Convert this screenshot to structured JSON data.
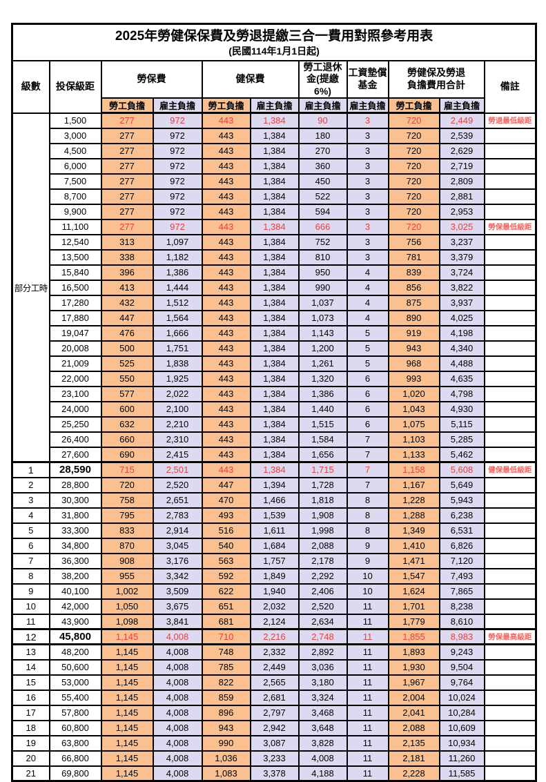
{
  "title": "2025年勞健保保費及勞退提繳三合一費用對照參考用表",
  "subtitle": "(民國114年1月1日起)",
  "colors": {
    "employee_share_bg": "#FAC090",
    "employer_share_bg": "#DCD9F1",
    "highlight_value_text": "#E8403A",
    "remark_text": "#F4645F",
    "grid_border": "#000000"
  },
  "header": {
    "level": "級數",
    "bracket": "投保級距",
    "labor_insurance": "勞保費",
    "health_insurance": "健保費",
    "pension_line1": "勞工退休",
    "pension_line2": "金(提繳6%)",
    "wage_fund_line1": "工資墊償",
    "wage_fund_line2": "基金",
    "total_line1": "勞健保及勞退",
    "total_line2": "負擔費用合計",
    "remark": "備註",
    "employee_share": "勞工負擔",
    "employer_share": "雇主負擔"
  },
  "table": {
    "part_time_label": "部分工時",
    "part_time_rowspan": 23
  },
  "rows": [
    {
      "level": "",
      "bracket": "1,500",
      "values": [
        "277",
        "972",
        "443",
        "1,384",
        "90",
        "3",
        "720",
        "2,449"
      ],
      "remark": "勞退最低級距",
      "red": true
    },
    {
      "level": "",
      "bracket": "3,000",
      "values": [
        "277",
        "972",
        "443",
        "1,384",
        "180",
        "3",
        "720",
        "2,539"
      ],
      "remark": ""
    },
    {
      "level": "",
      "bracket": "4,500",
      "values": [
        "277",
        "972",
        "443",
        "1,384",
        "270",
        "3",
        "720",
        "2,629"
      ],
      "remark": ""
    },
    {
      "level": "",
      "bracket": "6,000",
      "values": [
        "277",
        "972",
        "443",
        "1,384",
        "360",
        "3",
        "720",
        "2,719"
      ],
      "remark": ""
    },
    {
      "level": "",
      "bracket": "7,500",
      "values": [
        "277",
        "972",
        "443",
        "1,384",
        "450",
        "3",
        "720",
        "2,809"
      ],
      "remark": ""
    },
    {
      "level": "",
      "bracket": "8,700",
      "values": [
        "277",
        "972",
        "443",
        "1,384",
        "522",
        "3",
        "720",
        "2,881"
      ],
      "remark": ""
    },
    {
      "level": "",
      "bracket": "9,900",
      "values": [
        "277",
        "972",
        "443",
        "1,384",
        "594",
        "3",
        "720",
        "2,953"
      ],
      "remark": ""
    },
    {
      "level": "",
      "bracket": "11,100",
      "values": [
        "277",
        "972",
        "443",
        "1,384",
        "666",
        "3",
        "720",
        "3,025"
      ],
      "remark": "勞保最低級距",
      "red": true
    },
    {
      "level": "",
      "bracket": "12,540",
      "values": [
        "313",
        "1,097",
        "443",
        "1,384",
        "752",
        "3",
        "756",
        "3,237"
      ],
      "remark": ""
    },
    {
      "level": "",
      "bracket": "13,500",
      "values": [
        "338",
        "1,182",
        "443",
        "1,384",
        "810",
        "3",
        "781",
        "3,379"
      ],
      "remark": ""
    },
    {
      "level": "",
      "bracket": "15,840",
      "values": [
        "396",
        "1,386",
        "443",
        "1,384",
        "950",
        "4",
        "839",
        "3,724"
      ],
      "remark": ""
    },
    {
      "level": "",
      "bracket": "16,500",
      "values": [
        "413",
        "1,444",
        "443",
        "1,384",
        "990",
        "4",
        "856",
        "3,822"
      ],
      "remark": ""
    },
    {
      "level": "",
      "bracket": "17,280",
      "values": [
        "432",
        "1,512",
        "443",
        "1,384",
        "1,037",
        "4",
        "875",
        "3,937"
      ],
      "remark": ""
    },
    {
      "level": "",
      "bracket": "17,880",
      "values": [
        "447",
        "1,564",
        "443",
        "1,384",
        "1,073",
        "4",
        "890",
        "4,025"
      ],
      "remark": ""
    },
    {
      "level": "",
      "bracket": "19,047",
      "values": [
        "476",
        "1,666",
        "443",
        "1,384",
        "1,143",
        "5",
        "919",
        "4,198"
      ],
      "remark": ""
    },
    {
      "level": "",
      "bracket": "20,008",
      "values": [
        "500",
        "1,751",
        "443",
        "1,384",
        "1,200",
        "5",
        "943",
        "4,340"
      ],
      "remark": ""
    },
    {
      "level": "",
      "bracket": "21,009",
      "values": [
        "525",
        "1,838",
        "443",
        "1,384",
        "1,261",
        "5",
        "968",
        "4,488"
      ],
      "remark": ""
    },
    {
      "level": "",
      "bracket": "22,000",
      "values": [
        "550",
        "1,925",
        "443",
        "1,384",
        "1,320",
        "6",
        "993",
        "4,635"
      ],
      "remark": ""
    },
    {
      "level": "",
      "bracket": "23,100",
      "values": [
        "577",
        "2,022",
        "443",
        "1,384",
        "1,386",
        "6",
        "1,020",
        "4,798"
      ],
      "remark": ""
    },
    {
      "level": "",
      "bracket": "24,000",
      "values": [
        "600",
        "2,100",
        "443",
        "1,384",
        "1,440",
        "6",
        "1,043",
        "4,930"
      ],
      "remark": ""
    },
    {
      "level": "",
      "bracket": "25,250",
      "values": [
        "632",
        "2,210",
        "443",
        "1,384",
        "1,515",
        "6",
        "1,075",
        "5,115"
      ],
      "remark": ""
    },
    {
      "level": "",
      "bracket": "26,400",
      "values": [
        "660",
        "2,310",
        "443",
        "1,384",
        "1,584",
        "7",
        "1,103",
        "5,285"
      ],
      "remark": ""
    },
    {
      "level": "",
      "bracket": "27,600",
      "values": [
        "690",
        "2,415",
        "443",
        "1,384",
        "1,656",
        "7",
        "1,133",
        "5,462"
      ],
      "remark": ""
    },
    {
      "level": "1",
      "bracket": "28,590",
      "values": [
        "715",
        "2,501",
        "443",
        "1,384",
        "1,715",
        "7",
        "1,158",
        "5,608"
      ],
      "remark": "健保最低級距",
      "red": true,
      "key": true,
      "thick_top": true
    },
    {
      "level": "2",
      "bracket": "28,800",
      "values": [
        "720",
        "2,520",
        "447",
        "1,394",
        "1,728",
        "7",
        "1,167",
        "5,649"
      ],
      "remark": ""
    },
    {
      "level": "3",
      "bracket": "30,300",
      "values": [
        "758",
        "2,651",
        "470",
        "1,466",
        "1,818",
        "8",
        "1,228",
        "5,943"
      ],
      "remark": ""
    },
    {
      "level": "4",
      "bracket": "31,800",
      "values": [
        "795",
        "2,783",
        "493",
        "1,539",
        "1,908",
        "8",
        "1,288",
        "6,238"
      ],
      "remark": ""
    },
    {
      "level": "5",
      "bracket": "33,300",
      "values": [
        "833",
        "2,914",
        "516",
        "1,611",
        "1,998",
        "8",
        "1,349",
        "6,531"
      ],
      "remark": ""
    },
    {
      "level": "6",
      "bracket": "34,800",
      "values": [
        "870",
        "3,045",
        "540",
        "1,684",
        "2,088",
        "9",
        "1,410",
        "6,826"
      ],
      "remark": ""
    },
    {
      "level": "7",
      "bracket": "36,300",
      "values": [
        "908",
        "3,176",
        "563",
        "1,757",
        "2,178",
        "9",
        "1,471",
        "7,120"
      ],
      "remark": ""
    },
    {
      "level": "8",
      "bracket": "38,200",
      "values": [
        "955",
        "3,342",
        "592",
        "1,849",
        "2,292",
        "10",
        "1,547",
        "7,493"
      ],
      "remark": ""
    },
    {
      "level": "9",
      "bracket": "40,100",
      "values": [
        "1,002",
        "3,509",
        "622",
        "1,940",
        "2,406",
        "10",
        "1,624",
        "7,865"
      ],
      "remark": ""
    },
    {
      "level": "10",
      "bracket": "42,000",
      "values": [
        "1,050",
        "3,675",
        "651",
        "2,032",
        "2,520",
        "11",
        "1,701",
        "8,238"
      ],
      "remark": ""
    },
    {
      "level": "11",
      "bracket": "43,900",
      "values": [
        "1,098",
        "3,841",
        "681",
        "2,124",
        "2,634",
        "11",
        "1,779",
        "8,610"
      ],
      "remark": ""
    },
    {
      "level": "12",
      "bracket": "45,800",
      "values": [
        "1,145",
        "4,008",
        "710",
        "2,216",
        "2,748",
        "11",
        "1,855",
        "8,983"
      ],
      "remark": "勞保最高級距",
      "red": true,
      "key": true,
      "thick_top": true,
      "thick_bottom": true
    },
    {
      "level": "13",
      "bracket": "48,200",
      "values": [
        "1,145",
        "4,008",
        "748",
        "2,332",
        "2,892",
        "11",
        "1,893",
        "9,243"
      ],
      "remark": ""
    },
    {
      "level": "14",
      "bracket": "50,600",
      "values": [
        "1,145",
        "4,008",
        "785",
        "2,449",
        "3,036",
        "11",
        "1,930",
        "9,504"
      ],
      "remark": ""
    },
    {
      "level": "15",
      "bracket": "53,000",
      "values": [
        "1,145",
        "4,008",
        "822",
        "2,565",
        "3,180",
        "11",
        "1,967",
        "9,764"
      ],
      "remark": ""
    },
    {
      "level": "16",
      "bracket": "55,400",
      "values": [
        "1,145",
        "4,008",
        "859",
        "2,681",
        "3,324",
        "11",
        "2,004",
        "10,024"
      ],
      "remark": ""
    },
    {
      "level": "17",
      "bracket": "57,800",
      "values": [
        "1,145",
        "4,008",
        "896",
        "2,797",
        "3,468",
        "11",
        "2,041",
        "10,284"
      ],
      "remark": ""
    },
    {
      "level": "18",
      "bracket": "60,800",
      "values": [
        "1,145",
        "4,008",
        "943",
        "2,942",
        "3,648",
        "11",
        "2,088",
        "10,609"
      ],
      "remark": ""
    },
    {
      "level": "19",
      "bracket": "63,800",
      "values": [
        "1,145",
        "4,008",
        "990",
        "3,087",
        "3,828",
        "11",
        "2,135",
        "10,934"
      ],
      "remark": ""
    },
    {
      "level": "20",
      "bracket": "66,800",
      "values": [
        "1,145",
        "4,008",
        "1,036",
        "3,233",
        "4,008",
        "11",
        "2,181",
        "11,260"
      ],
      "remark": ""
    },
    {
      "level": "21",
      "bracket": "69,800",
      "values": [
        "1,145",
        "4,008",
        "1,083",
        "3,378",
        "4,188",
        "11",
        "2,228",
        "11,585"
      ],
      "remark": ""
    }
  ]
}
